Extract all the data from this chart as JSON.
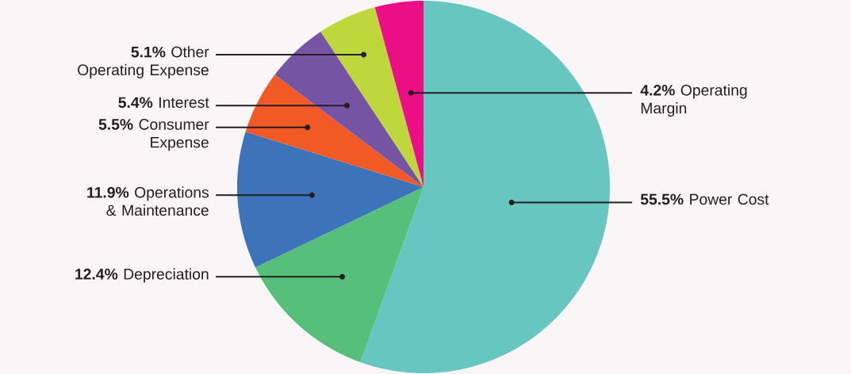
{
  "chart_data": {
    "type": "pie",
    "categories": [
      "Power Cost",
      "Depreciation",
      "Operations & Maintenance",
      "Consumer Expense",
      "Interest",
      "Other Operating Expense",
      "Operating Margin"
    ],
    "values": [
      55.5,
      12.4,
      11.9,
      5.5,
      5.4,
      5.1,
      4.2
    ],
    "value_labels": [
      "55.5%",
      "12.4%",
      "11.9%",
      "5.5%",
      "5.4%",
      "5.1%",
      "4.2%"
    ],
    "colors": [
      "#67c7c0",
      "#56bf7a",
      "#3d74b9",
      "#f15a24",
      "#7654a4",
      "#bed73b",
      "#ec0e84"
    ]
  }
}
